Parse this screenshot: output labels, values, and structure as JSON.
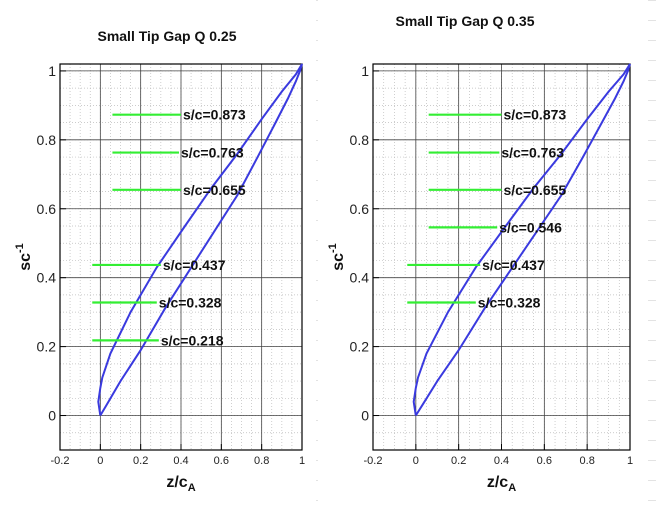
{
  "chart_data": [
    {
      "type": "line",
      "title": "Small Tip Gap Q 0.25",
      "xlabel": "z/c",
      "xlabel_sub": "A",
      "ylabel": "sc",
      "ylabel_sup": "-1",
      "xlim": [
        -0.2,
        1.0
      ],
      "ylim": [
        -0.1,
        1.02
      ],
      "x_ticks": [
        "-0.2",
        "0",
        "0.2",
        "0.4",
        "0.6",
        "0.8",
        "1"
      ],
      "y_ticks": [
        "0",
        "0.2",
        "0.4",
        "0.6",
        "0.8",
        "1"
      ],
      "grid": true,
      "series": [
        {
          "color": "#3a3adf",
          "x": [
            0.0,
            -0.01,
            0.0,
            0.01,
            0.05,
            0.15,
            0.28,
            0.42,
            0.55,
            0.68,
            0.8,
            0.9,
            0.97,
            1.0,
            0.99,
            0.97,
            0.93,
            0.86,
            0.78,
            0.68,
            0.56,
            0.44,
            0.32,
            0.2,
            0.1,
            0.03,
            0.0
          ],
          "y": [
            0.0,
            0.04,
            0.08,
            0.11,
            0.18,
            0.3,
            0.43,
            0.55,
            0.66,
            0.76,
            0.86,
            0.94,
            0.99,
            1.02,
            1.0,
            0.97,
            0.92,
            0.84,
            0.75,
            0.64,
            0.53,
            0.42,
            0.31,
            0.19,
            0.1,
            0.03,
            0.0
          ]
        }
      ],
      "slices": [
        {
          "label": "s/c=0.873",
          "y": 0.873,
          "x0": 0.06,
          "x1": 0.4
        },
        {
          "label": "s/c=0.763",
          "y": 0.763,
          "x0": 0.06,
          "x1": 0.39
        },
        {
          "label": "s/c=0.655",
          "y": 0.655,
          "x0": 0.06,
          "x1": 0.4
        },
        {
          "label": "s/c=0.437",
          "y": 0.437,
          "x0": -0.04,
          "x1": 0.3
        },
        {
          "label": "s/c=0.328",
          "y": 0.328,
          "x0": -0.04,
          "x1": 0.28
        },
        {
          "label": "s/c=0.218",
          "y": 0.218,
          "x0": -0.04,
          "x1": 0.29
        }
      ],
      "slice_color": "#33ee33"
    },
    {
      "type": "line",
      "title": "Small Tip Gap Q 0.35",
      "xlabel": "z/c",
      "xlabel_sub": "A",
      "ylabel": "sc",
      "ylabel_sup": "-1",
      "xlim": [
        -0.2,
        1.0
      ],
      "ylim": [
        -0.1,
        1.02
      ],
      "x_ticks": [
        "-0.2",
        "0",
        "0.2",
        "0.4",
        "0.6",
        "0.8",
        "1"
      ],
      "y_ticks": [
        "0",
        "0.2",
        "0.4",
        "0.6",
        "0.8",
        "1"
      ],
      "grid": true,
      "series": [
        {
          "color": "#3a3adf",
          "x": [
            0.0,
            -0.01,
            0.0,
            0.01,
            0.05,
            0.15,
            0.28,
            0.42,
            0.55,
            0.68,
            0.8,
            0.9,
            0.97,
            1.0,
            0.99,
            0.97,
            0.93,
            0.86,
            0.78,
            0.68,
            0.56,
            0.44,
            0.32,
            0.2,
            0.1,
            0.03,
            0.0
          ],
          "y": [
            0.0,
            0.04,
            0.08,
            0.11,
            0.18,
            0.3,
            0.43,
            0.55,
            0.66,
            0.76,
            0.86,
            0.94,
            0.99,
            1.02,
            1.0,
            0.97,
            0.92,
            0.84,
            0.75,
            0.64,
            0.53,
            0.42,
            0.31,
            0.19,
            0.1,
            0.03,
            0.0
          ]
        }
      ],
      "slices": [
        {
          "label": "s/c=0.873",
          "y": 0.873,
          "x0": 0.06,
          "x1": 0.4
        },
        {
          "label": "s/c=0.763",
          "y": 0.763,
          "x0": 0.06,
          "x1": 0.39
        },
        {
          "label": "s/c=0.655",
          "y": 0.655,
          "x0": 0.06,
          "x1": 0.4
        },
        {
          "label": "s/c=0.546",
          "y": 0.546,
          "x0": 0.06,
          "x1": 0.38
        },
        {
          "label": "s/c=0.437",
          "y": 0.437,
          "x0": -0.04,
          "x1": 0.3
        },
        {
          "label": "s/c=0.328",
          "y": 0.328,
          "x0": -0.04,
          "x1": 0.28
        }
      ],
      "slice_color": "#33ee33"
    }
  ]
}
